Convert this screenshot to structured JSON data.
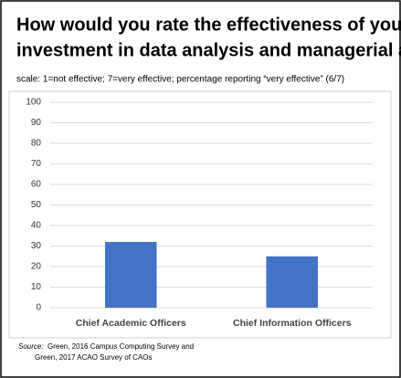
{
  "chart_data": {
    "type": "bar",
    "title_lines": [
      "How would you rate the effectiveness of your institution’s",
      "investment in data analysis and managerial analytics?"
    ],
    "subtitle": "scale: 1=not effective; 7=very effective; percentage reporting “very effective” (6/7)",
    "categories": [
      "Chief Academic Officers",
      "Chief Information Officers"
    ],
    "values": [
      32,
      25
    ],
    "color": "#4472c4",
    "ylim": [
      0,
      100
    ],
    "yticks": [
      0,
      10,
      20,
      30,
      40,
      50,
      60,
      70,
      80,
      90,
      100
    ],
    "grid": true,
    "source_label": "Source:",
    "source_lines": [
      "Green, 2016 Campus Computing Survey and",
      "Green, 2017 ACAO Survey of CAOs"
    ]
  }
}
